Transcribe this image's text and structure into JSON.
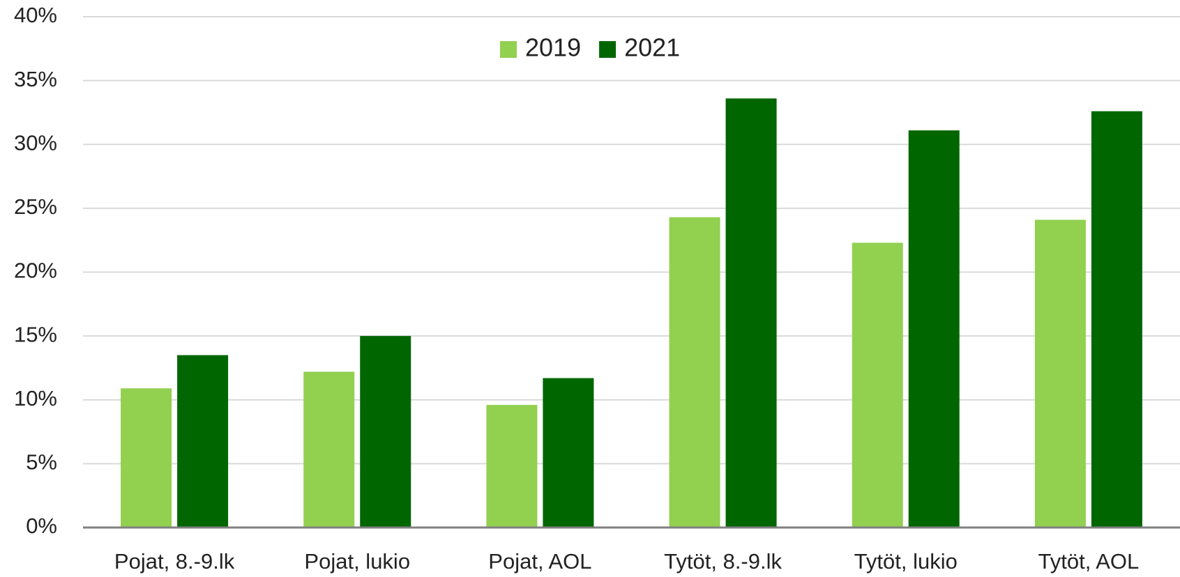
{
  "chart_data": {
    "type": "bar",
    "categories": [
      "Pojat, 8.-9.lk",
      "Pojat, lukio",
      "Pojat, AOL",
      "Tytöt, 8.-9.lk",
      "Tytöt, lukio",
      "Tytöt, AOL"
    ],
    "series": [
      {
        "name": "2019",
        "color": "#92d050",
        "values": [
          10.9,
          12.2,
          9.6,
          24.3,
          22.3,
          24.1
        ]
      },
      {
        "name": "2021",
        "color": "#006600",
        "values": [
          13.5,
          15.0,
          11.7,
          33.6,
          31.1,
          32.6
        ]
      }
    ],
    "ylim": [
      0,
      40
    ],
    "yticks": [
      {
        "value": 0,
        "label": "0%"
      },
      {
        "value": 5,
        "label": "5%"
      },
      {
        "value": 10,
        "label": "10%"
      },
      {
        "value": 15,
        "label": "15%"
      },
      {
        "value": 20,
        "label": "20%"
      },
      {
        "value": 25,
        "label": "25%"
      },
      {
        "value": 30,
        "label": "30%"
      },
      {
        "value": 35,
        "label": "35%"
      },
      {
        "value": 40,
        "label": "40%"
      }
    ],
    "grid": true,
    "legend": "top"
  }
}
